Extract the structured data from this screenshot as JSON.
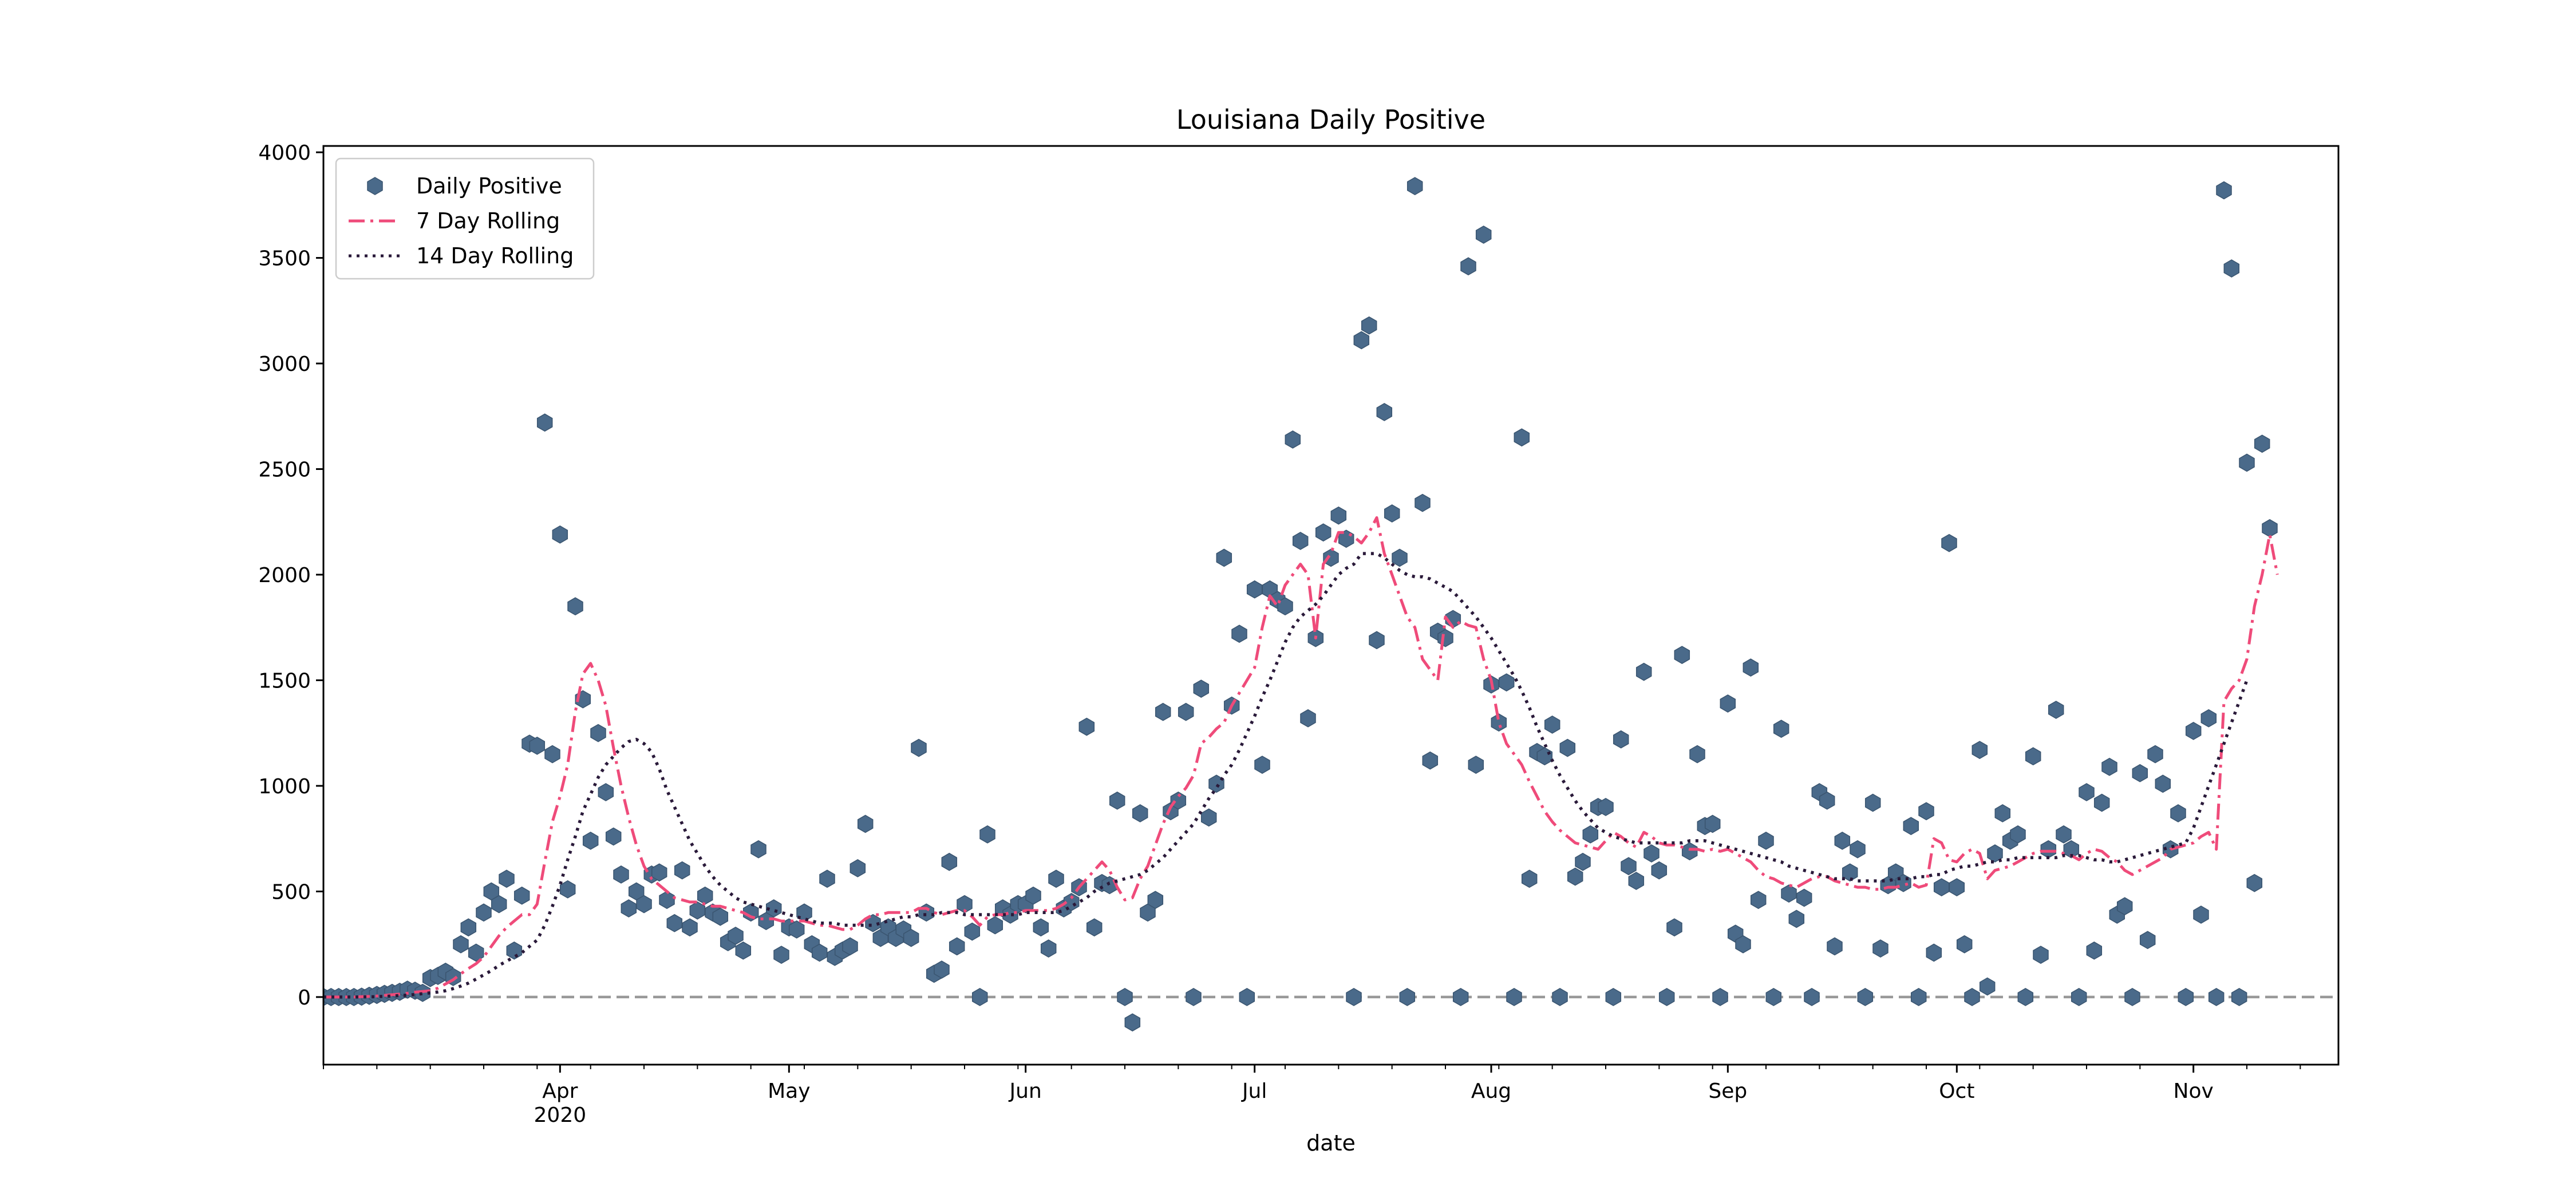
{
  "chart_data": {
    "type": "line",
    "title": "Louisiana Daily Positive",
    "xlabel": "date",
    "ylabel": "",
    "ylim": [
      -320,
      4030
    ],
    "xlim": [
      "2020-03-01",
      "2020-11-20"
    ],
    "yticks": [
      0,
      500,
      1000,
      1500,
      2000,
      2500,
      3000,
      3500,
      4000
    ],
    "xticks": [
      {
        "date": "2020-04-01",
        "label": "Apr",
        "sublabel": "2020"
      },
      {
        "date": "2020-05-01",
        "label": "May",
        "sublabel": ""
      },
      {
        "date": "2020-06-01",
        "label": "Jun",
        "sublabel": ""
      },
      {
        "date": "2020-07-01",
        "label": "Jul",
        "sublabel": ""
      },
      {
        "date": "2020-08-01",
        "label": "Aug",
        "sublabel": ""
      },
      {
        "date": "2020-09-01",
        "label": "Sep",
        "sublabel": ""
      },
      {
        "date": "2020-10-01",
        "label": "Oct",
        "sublabel": ""
      },
      {
        "date": "2020-11-01",
        "label": "Nov",
        "sublabel": ""
      }
    ],
    "reference_line": {
      "y": 0,
      "style": "dashed",
      "color": "#999999"
    },
    "legend": {
      "position": "top-left"
    },
    "grid": false,
    "start_date": "2020-03-01",
    "series": [
      {
        "name": "Daily Positive",
        "kind": "scatter",
        "marker": "hexagon",
        "color": "#4a6a8a",
        "values": [
          0,
          0,
          0,
          0,
          0,
          2,
          6,
          10,
          15,
          20,
          25,
          35,
          30,
          20,
          90,
          100,
          120,
          95,
          250,
          330,
          210,
          400,
          500,
          440,
          560,
          220,
          480,
          1200,
          1190,
          2720,
          1150,
          2190,
          510,
          1850,
          1410,
          740,
          1250,
          970,
          760,
          580,
          420,
          500,
          440,
          580,
          590,
          460,
          350,
          600,
          330,
          410,
          480,
          400,
          380,
          260,
          290,
          220,
          400,
          700,
          360,
          420,
          200,
          330,
          320,
          400,
          250,
          210,
          560,
          190,
          220,
          240,
          610,
          820,
          350,
          280,
          330,
          280,
          320,
          280,
          1180,
          400,
          110,
          130,
          640,
          240,
          440,
          310,
          0,
          770,
          340,
          420,
          390,
          440,
          440,
          480,
          330,
          230,
          560,
          420,
          450,
          520,
          1280,
          330,
          540,
          530,
          930,
          0,
          -120,
          870,
          400,
          460,
          1350,
          880,
          930,
          1350,
          0,
          1460,
          850,
          1010,
          2080,
          1380,
          1720,
          0,
          1930,
          1100,
          1930,
          1880,
          1850,
          2640,
          2160,
          1320,
          1700,
          2200,
          2080,
          2280,
          2170,
          0,
          3110,
          3180,
          1690,
          2770,
          2290,
          2080,
          0,
          3840,
          2340,
          1120,
          1730,
          1700,
          1790,
          0,
          3460,
          1100,
          3610,
          1480,
          1300,
          1490,
          0,
          2650,
          560,
          1160,
          1140,
          1290,
          0,
          1180,
          570,
          640,
          770,
          900,
          900,
          0,
          1220,
          620,
          550,
          1540,
          680,
          600,
          0,
          330,
          1620,
          690,
          1150,
          810,
          820,
          0,
          1390,
          300,
          250,
          1560,
          460,
          740,
          0,
          1270,
          490,
          370,
          470,
          0,
          970,
          930,
          240,
          740,
          590,
          700,
          0,
          920,
          230,
          530,
          590,
          540,
          810,
          0,
          880,
          210,
          520,
          2150,
          520,
          250,
          0,
          1170,
          50,
          680,
          870,
          740,
          770,
          0,
          1140,
          200,
          700,
          1360,
          770,
          700,
          0,
          970,
          220,
          920,
          1090,
          390,
          430,
          0,
          1060,
          270,
          1150,
          1010,
          700,
          870,
          0,
          1260,
          390,
          1320,
          0,
          3820,
          3450,
          0,
          2530,
          540,
          2620,
          2220
        ]
      },
      {
        "name": "7 Day Rolling",
        "kind": "line",
        "style": "dashdot",
        "color": "#ef4b7a",
        "values": [
          0,
          0,
          0,
          0,
          0,
          2,
          3,
          5,
          8,
          11,
          14,
          18,
          23,
          26,
          30,
          42,
          62,
          82,
          110,
          135,
          158,
          190,
          240,
          290,
          330,
          360,
          390,
          390,
          440,
          640,
          830,
          950,
          1100,
          1350,
          1530,
          1580,
          1500,
          1380,
          1180,
          1000,
          850,
          720,
          620,
          560,
          530,
          500,
          470,
          460,
          450,
          450,
          440,
          430,
          430,
          420,
          410,
          400,
          380,
          370,
          370,
          370,
          360,
          360,
          360,
          360,
          350,
          340,
          340,
          330,
          320,
          320,
          340,
          370,
          390,
          390,
          400,
          400,
          400,
          400,
          420,
          420,
          400,
          390,
          400,
          410,
          410,
          380,
          340,
          380,
          390,
          390,
          400,
          400,
          410,
          410,
          410,
          410,
          420,
          440,
          470,
          520,
          560,
          600,
          640,
          600,
          520,
          460,
          470,
          560,
          620,
          720,
          820,
          900,
          950,
          990,
          1050,
          1200,
          1230,
          1270,
          1300,
          1380,
          1440,
          1500,
          1560,
          1750,
          1900,
          1850,
          1950,
          2000,
          2050,
          2000,
          1700,
          2050,
          2100,
          2200,
          2200,
          2180,
          2150,
          2200,
          2270,
          2100,
          2000,
          1900,
          1800,
          1750,
          1600,
          1550,
          1500,
          1800,
          1750,
          1780,
          1760,
          1750,
          1600,
          1500,
          1300,
          1200,
          1150,
          1100,
          1020,
          950,
          880,
          830,
          790,
          760,
          730,
          720,
          710,
          700,
          740,
          780,
          760,
          730,
          710,
          780,
          760,
          730,
          720,
          720,
          710,
          700,
          700,
          690,
          700,
          690,
          700,
          680,
          660,
          640,
          600,
          570,
          560,
          540,
          530,
          520,
          540,
          560,
          570,
          570,
          550,
          540,
          530,
          520,
          520,
          510,
          510,
          520,
          520,
          530,
          540,
          520,
          530,
          750,
          730,
          650,
          640,
          680,
          700,
          680,
          560,
          600,
          610,
          620,
          640,
          660,
          680,
          690,
          690,
          690,
          680,
          670,
          650,
          680,
          700,
          690,
          660,
          640,
          600,
          580,
          600,
          620,
          640,
          660,
          700,
          710,
          720,
          730,
          760,
          780,
          700,
          1400,
          1460,
          1500,
          1600,
          1850,
          2000,
          2190,
          2000
        ]
      },
      {
        "name": "14 Day Rolling",
        "kind": "line",
        "style": "dotted",
        "color": "#2a1a3a",
        "values": [
          0,
          0,
          0,
          0,
          0,
          1,
          1,
          2,
          3,
          5,
          7,
          9,
          12,
          16,
          20,
          24,
          30,
          40,
          52,
          66,
          85,
          105,
          125,
          150,
          170,
          190,
          210,
          240,
          270,
          340,
          430,
          530,
          650,
          760,
          880,
          960,
          1040,
          1100,
          1140,
          1180,
          1210,
          1220,
          1200,
          1160,
          1080,
          980,
          900,
          820,
          740,
          680,
          620,
          570,
          530,
          500,
          470,
          450,
          440,
          430,
          420,
          410,
          400,
          390,
          380,
          370,
          360,
          350,
          350,
          350,
          340,
          340,
          340,
          340,
          340,
          350,
          360,
          370,
          380,
          380,
          390,
          390,
          390,
          400,
          400,
          400,
          390,
          390,
          390,
          390,
          390,
          390,
          390,
          390,
          400,
          400,
          400,
          400,
          400,
          410,
          430,
          450,
          470,
          500,
          520,
          540,
          550,
          560,
          570,
          580,
          600,
          630,
          660,
          700,
          740,
          780,
          820,
          880,
          940,
          990,
          1050,
          1100,
          1170,
          1250,
          1330,
          1420,
          1500,
          1590,
          1680,
          1750,
          1800,
          1830,
          1860,
          1900,
          1950,
          2000,
          2030,
          2050,
          2100,
          2100,
          2100,
          2080,
          2050,
          2020,
          2000,
          1990,
          1990,
          1980,
          1960,
          1940,
          1920,
          1880,
          1840,
          1800,
          1750,
          1700,
          1640,
          1580,
          1520,
          1450,
          1370,
          1280,
          1200,
          1120,
          1050,
          990,
          930,
          880,
          840,
          800,
          780,
          760,
          750,
          740,
          730,
          730,
          730,
          730,
          730,
          730,
          730,
          740,
          740,
          740,
          730,
          720,
          710,
          700,
          690,
          680,
          670,
          660,
          650,
          640,
          620,
          610,
          600,
          590,
          580,
          570,
          560,
          560,
          560,
          550,
          550,
          550,
          550,
          550,
          560,
          560,
          560,
          570,
          570,
          580,
          580,
          600,
          610,
          620,
          620,
          630,
          640,
          640,
          650,
          650,
          660,
          660,
          660,
          660,
          660,
          660,
          670,
          670,
          670,
          660,
          650,
          650,
          640,
          640,
          650,
          660,
          670,
          680,
          690,
          700,
          710,
          720,
          730,
          800,
          900,
          1000,
          1100,
          1200,
          1300,
          1400,
          1500
        ]
      }
    ]
  }
}
